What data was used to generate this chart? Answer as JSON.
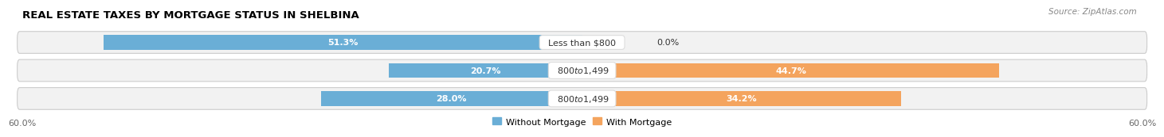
{
  "title": "REAL ESTATE TAXES BY MORTGAGE STATUS IN SHELBINA",
  "source": "Source: ZipAtlas.com",
  "rows": [
    {
      "label": "Less than $800",
      "without_mortgage": 51.3,
      "with_mortgage": 0.0
    },
    {
      "label": "$800 to $1,499",
      "without_mortgage": 20.7,
      "with_mortgage": 44.7
    },
    {
      "label": "$800 to $1,499",
      "without_mortgage": 28.0,
      "with_mortgage": 34.2
    }
  ],
  "max_val": 60.0,
  "color_without": "#6aaed6",
  "color_with": "#f4a45e",
  "color_without_light": "#c6dff0",
  "color_with_light": "#f9d4a8",
  "bar_height": 0.52,
  "title_fontsize": 9.5,
  "source_fontsize": 7.5,
  "label_fontsize": 8,
  "tick_fontsize": 8
}
